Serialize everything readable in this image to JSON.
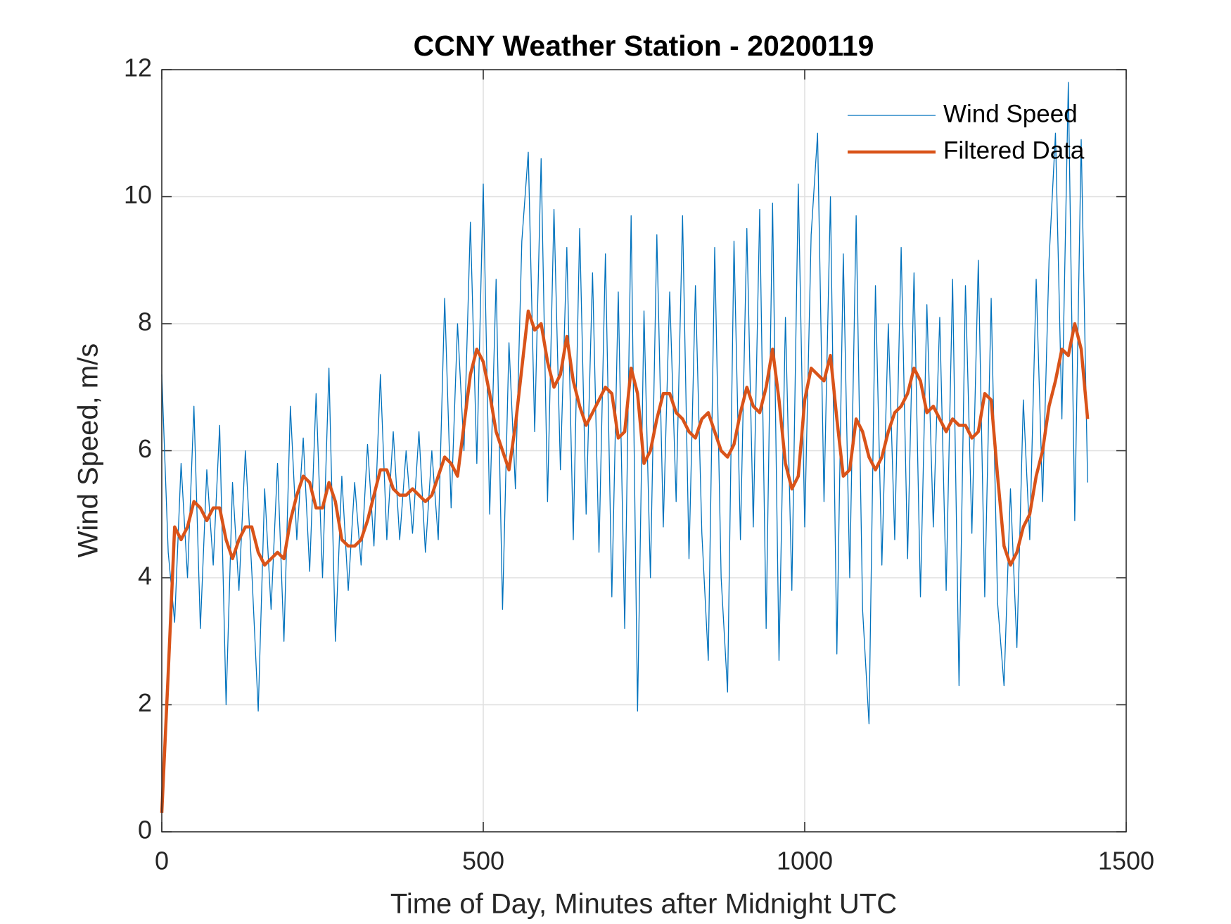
{
  "chart_data": {
    "type": "line",
    "title": "CCNY Weather Station - 20200119",
    "xlabel": "Time of Day, Minutes after Midnight UTC",
    "ylabel": "Wind Speed, m/s",
    "x": [
      0,
      10,
      20,
      30,
      40,
      50,
      60,
      70,
      80,
      90,
      100,
      110,
      120,
      130,
      140,
      150,
      160,
      170,
      180,
      190,
      200,
      210,
      220,
      230,
      240,
      250,
      260,
      270,
      280,
      290,
      300,
      310,
      320,
      330,
      340,
      350,
      360,
      370,
      380,
      390,
      400,
      410,
      420,
      430,
      440,
      450,
      460,
      470,
      480,
      490,
      500,
      510,
      520,
      530,
      540,
      550,
      560,
      570,
      580,
      590,
      600,
      610,
      620,
      630,
      640,
      650,
      660,
      670,
      680,
      690,
      700,
      710,
      720,
      730,
      740,
      750,
      760,
      770,
      780,
      790,
      800,
      810,
      820,
      830,
      840,
      850,
      860,
      870,
      880,
      890,
      900,
      910,
      920,
      930,
      940,
      950,
      960,
      970,
      980,
      990,
      1000,
      1010,
      1020,
      1030,
      1040,
      1050,
      1060,
      1070,
      1080,
      1090,
      1100,
      1110,
      1120,
      1130,
      1140,
      1150,
      1160,
      1170,
      1180,
      1190,
      1200,
      1210,
      1220,
      1230,
      1240,
      1250,
      1260,
      1270,
      1280,
      1290,
      1300,
      1310,
      1320,
      1330,
      1340,
      1350,
      1360,
      1370,
      1380,
      1390,
      1400,
      1410,
      1420,
      1430,
      1440
    ],
    "series": [
      {
        "name": "Wind Speed",
        "color": "#0072bd",
        "width": 1.3,
        "values": [
          7.2,
          4.4,
          3.3,
          5.8,
          4.0,
          6.7,
          3.2,
          5.7,
          4.2,
          6.4,
          2.0,
          5.5,
          3.8,
          6.0,
          4.1,
          1.9,
          5.4,
          3.5,
          5.8,
          3.0,
          6.7,
          4.6,
          6.2,
          4.1,
          6.9,
          4.0,
          7.3,
          3.0,
          5.6,
          3.8,
          5.5,
          4.2,
          6.1,
          4.5,
          7.2,
          4.6,
          6.3,
          4.6,
          6.0,
          4.7,
          6.3,
          4.4,
          6.0,
          4.6,
          8.4,
          5.1,
          8.0,
          6.0,
          9.6,
          5.8,
          10.2,
          5.0,
          8.7,
          3.5,
          7.7,
          5.4,
          9.3,
          10.7,
          6.3,
          10.6,
          5.2,
          9.8,
          5.7,
          9.2,
          4.6,
          9.5,
          5.0,
          8.8,
          4.4,
          9.1,
          3.7,
          8.5,
          3.2,
          9.7,
          1.9,
          8.2,
          4.0,
          9.4,
          4.8,
          8.5,
          5.2,
          9.7,
          4.3,
          8.6,
          4.7,
          2.7,
          9.2,
          4.0,
          2.2,
          9.3,
          4.6,
          9.5,
          4.8,
          9.8,
          3.2,
          9.9,
          2.7,
          8.1,
          3.8,
          10.2,
          4.8,
          9.4,
          11.0,
          5.2,
          10.0,
          2.8,
          9.1,
          4.0,
          9.7,
          3.5,
          1.7,
          8.6,
          4.2,
          8.0,
          4.6,
          9.2,
          4.3,
          8.8,
          3.7,
          8.3,
          4.8,
          8.1,
          3.8,
          8.7,
          2.3,
          8.6,
          4.7,
          9.0,
          3.7,
          8.4,
          3.6,
          2.3,
          5.4,
          2.9,
          6.8,
          4.6,
          8.7,
          5.2,
          9.0,
          11.0,
          6.5,
          11.8,
          4.9,
          10.9,
          5.5
        ]
      },
      {
        "name": "Filtered Data",
        "color": "#d95319",
        "width": 4.5,
        "values": [
          0.3,
          2.5,
          4.8,
          4.6,
          4.8,
          5.2,
          5.1,
          4.9,
          5.1,
          5.1,
          4.6,
          4.3,
          4.6,
          4.8,
          4.8,
          4.4,
          4.2,
          4.3,
          4.4,
          4.3,
          4.9,
          5.3,
          5.6,
          5.5,
          5.1,
          5.1,
          5.5,
          5.2,
          4.6,
          4.5,
          4.5,
          4.6,
          4.9,
          5.3,
          5.7,
          5.7,
          5.4,
          5.3,
          5.3,
          5.4,
          5.3,
          5.2,
          5.3,
          5.6,
          5.9,
          5.8,
          5.6,
          6.4,
          7.2,
          7.6,
          7.4,
          6.9,
          6.3,
          6.0,
          5.7,
          6.4,
          7.3,
          8.2,
          7.9,
          8.0,
          7.4,
          7.0,
          7.2,
          7.8,
          7.1,
          6.7,
          6.4,
          6.6,
          6.8,
          7.0,
          6.9,
          6.2,
          6.3,
          7.3,
          6.9,
          5.8,
          6.0,
          6.5,
          6.9,
          6.9,
          6.6,
          6.5,
          6.3,
          6.2,
          6.5,
          6.6,
          6.3,
          6.0,
          5.9,
          6.1,
          6.6,
          7.0,
          6.7,
          6.6,
          7.0,
          7.6,
          6.8,
          5.8,
          5.4,
          5.6,
          6.8,
          7.3,
          7.2,
          7.1,
          7.5,
          6.5,
          5.6,
          5.7,
          6.5,
          6.3,
          5.9,
          5.7,
          5.9,
          6.3,
          6.6,
          6.7,
          6.9,
          7.3,
          7.1,
          6.6,
          6.7,
          6.5,
          6.3,
          6.5,
          6.4,
          6.4,
          6.2,
          6.3,
          6.9,
          6.8,
          5.6,
          4.5,
          4.2,
          4.4,
          4.8,
          5.0,
          5.6,
          6.0,
          6.7,
          7.1,
          7.6,
          7.5,
          8.0,
          7.6,
          6.5
        ]
      }
    ],
    "xlim": [
      0,
      1500
    ],
    "xticks": [
      0,
      500,
      1000,
      1500
    ],
    "ylim": [
      0,
      12
    ],
    "yticks": [
      0,
      2,
      4,
      6,
      8,
      10,
      12
    ],
    "grid": true,
    "legend": "upper right"
  }
}
